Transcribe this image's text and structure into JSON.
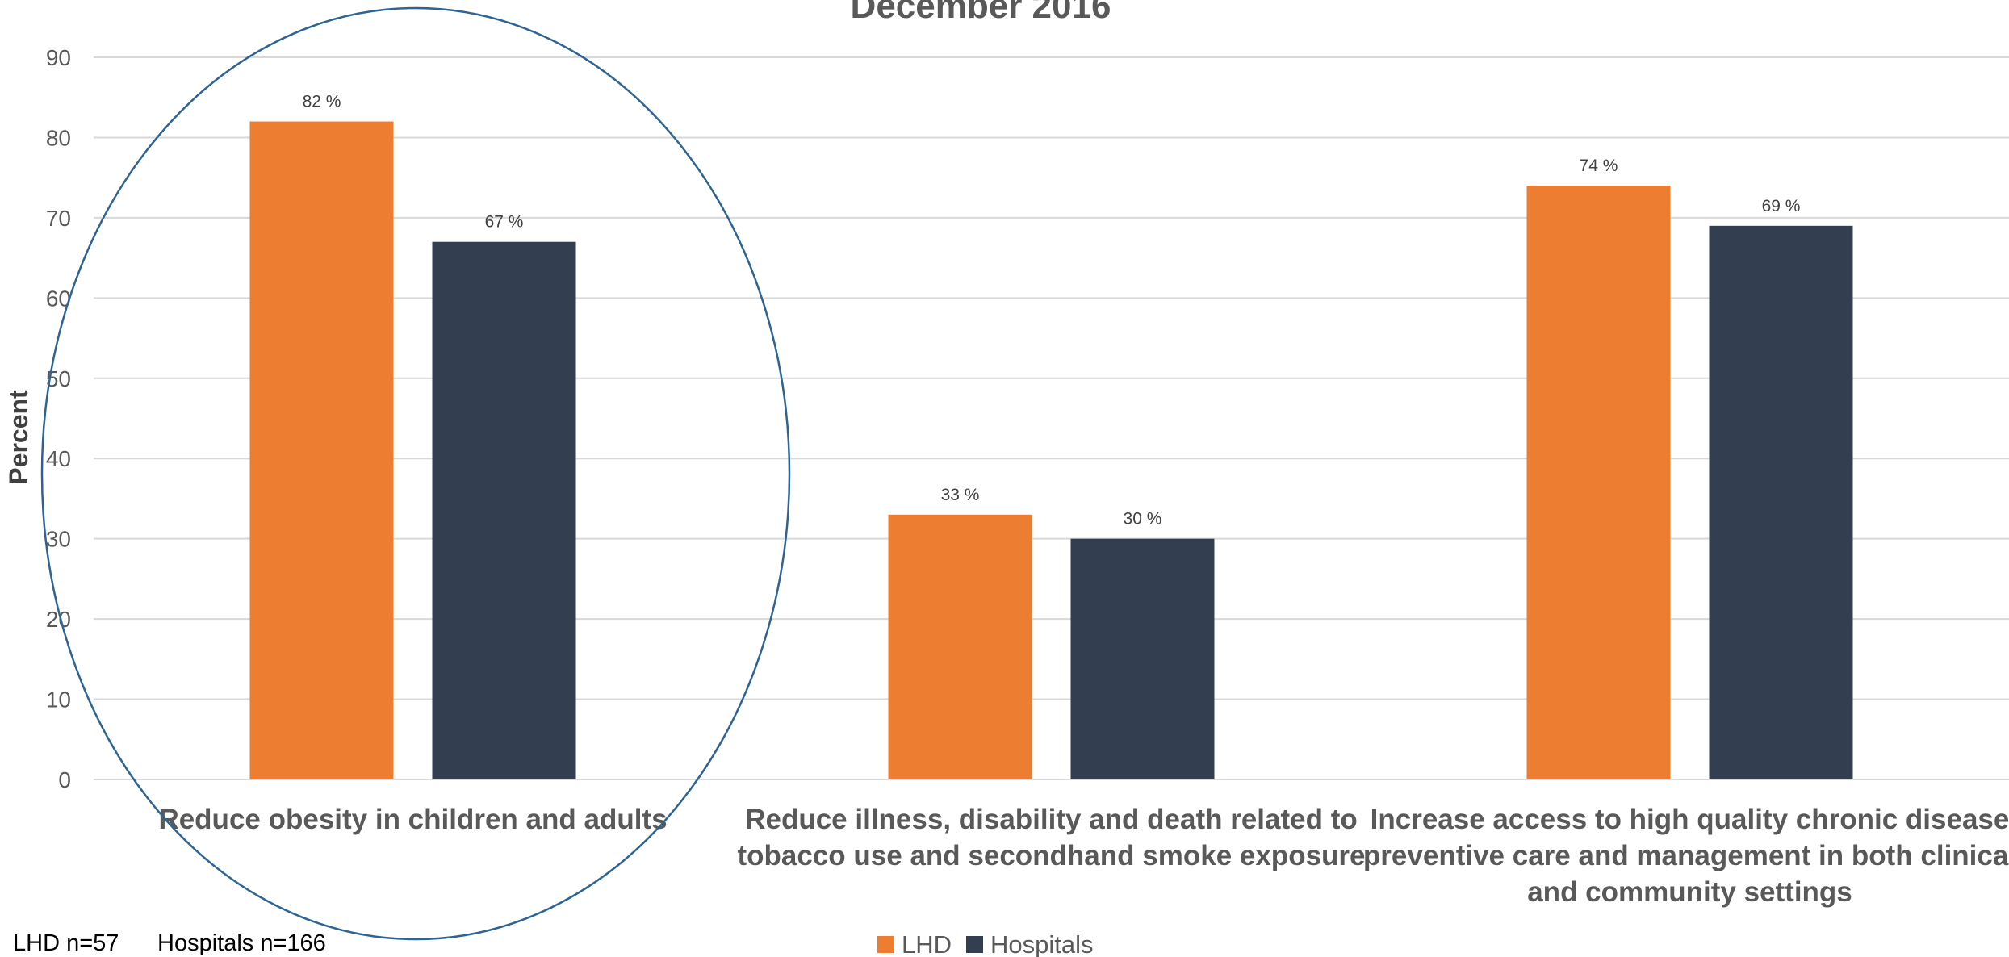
{
  "chart_data": {
    "type": "bar",
    "title": "December 2016",
    "ylabel": "Percent",
    "xlabel": "",
    "ylim": [
      0,
      90
    ],
    "yticks": [
      0,
      10,
      20,
      30,
      40,
      50,
      60,
      70,
      80,
      90
    ],
    "grid": true,
    "legend_position": "bottom",
    "categories": [
      [
        "Reduce obesity in children and adults"
      ],
      [
        "Reduce illness, disability and death related to",
        "tobacco use and secondhand smoke exposure"
      ],
      [
        "Increase access to high quality chronic disease",
        "preventive care and management in both clinical",
        "and community settings"
      ]
    ],
    "series": [
      {
        "name": "LHD",
        "color": "#ed7d31",
        "values": [
          82,
          33,
          74
        ],
        "labels": [
          "82 %",
          "33 %",
          "74 %"
        ]
      },
      {
        "name": "Hospitals",
        "color": "#333f50",
        "values": [
          67,
          30,
          69
        ],
        "labels": [
          "67 %",
          "30 %",
          "69 %"
        ]
      }
    ],
    "annotation": {
      "shape": "ellipse",
      "target": "Reduce obesity in children and adults",
      "color": "#2e6493"
    }
  },
  "footnote": {
    "lhd": "LHD  n=57",
    "hospitals": "Hospitals n=166"
  }
}
